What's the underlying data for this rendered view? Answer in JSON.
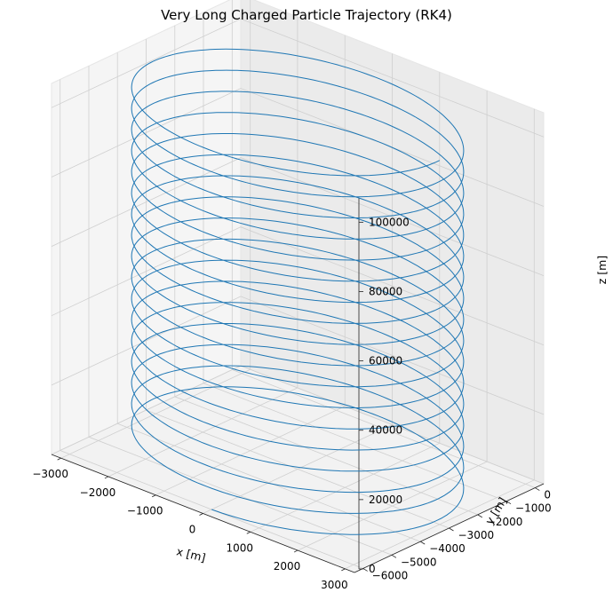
{
  "chart_data": {
    "type": "line3d",
    "title": "Very Long Charged Particle Trajectory (RK4)",
    "xlabel": "x [m]",
    "ylabel": "y [m]",
    "zlabel": "z [m]",
    "xlim": [
      -3200,
      3200
    ],
    "ylim": [
      -6300,
      300
    ],
    "zlim": [
      0,
      107000
    ],
    "x_ticks": [
      -3000,
      -2000,
      -1000,
      0,
      1000,
      2000,
      3000
    ],
    "y_ticks": [
      -6000,
      -5000,
      -4000,
      -3000,
      -2000,
      -1000,
      0
    ],
    "z_ticks": [
      0,
      20000,
      40000,
      60000,
      80000,
      100000
    ],
    "x_tick_labels": [
      "−3000",
      "−2000",
      "−1000",
      "0",
      "1000",
      "2000",
      "3000"
    ],
    "y_tick_labels": [
      "−6000",
      "−5000",
      "−4000",
      "−3000",
      "−2000",
      "−1000",
      "0"
    ],
    "z_tick_labels": [
      "0",
      "20000",
      "40000",
      "60000",
      "80000",
      "100000"
    ],
    "grid": true,
    "series": [
      {
        "kind": "helix",
        "color": "#1f77b4",
        "center_x": 0,
        "center_y": -3000,
        "radius": 3000,
        "z_start": 0,
        "z_end": 105000,
        "turns": 17.25
      }
    ]
  }
}
